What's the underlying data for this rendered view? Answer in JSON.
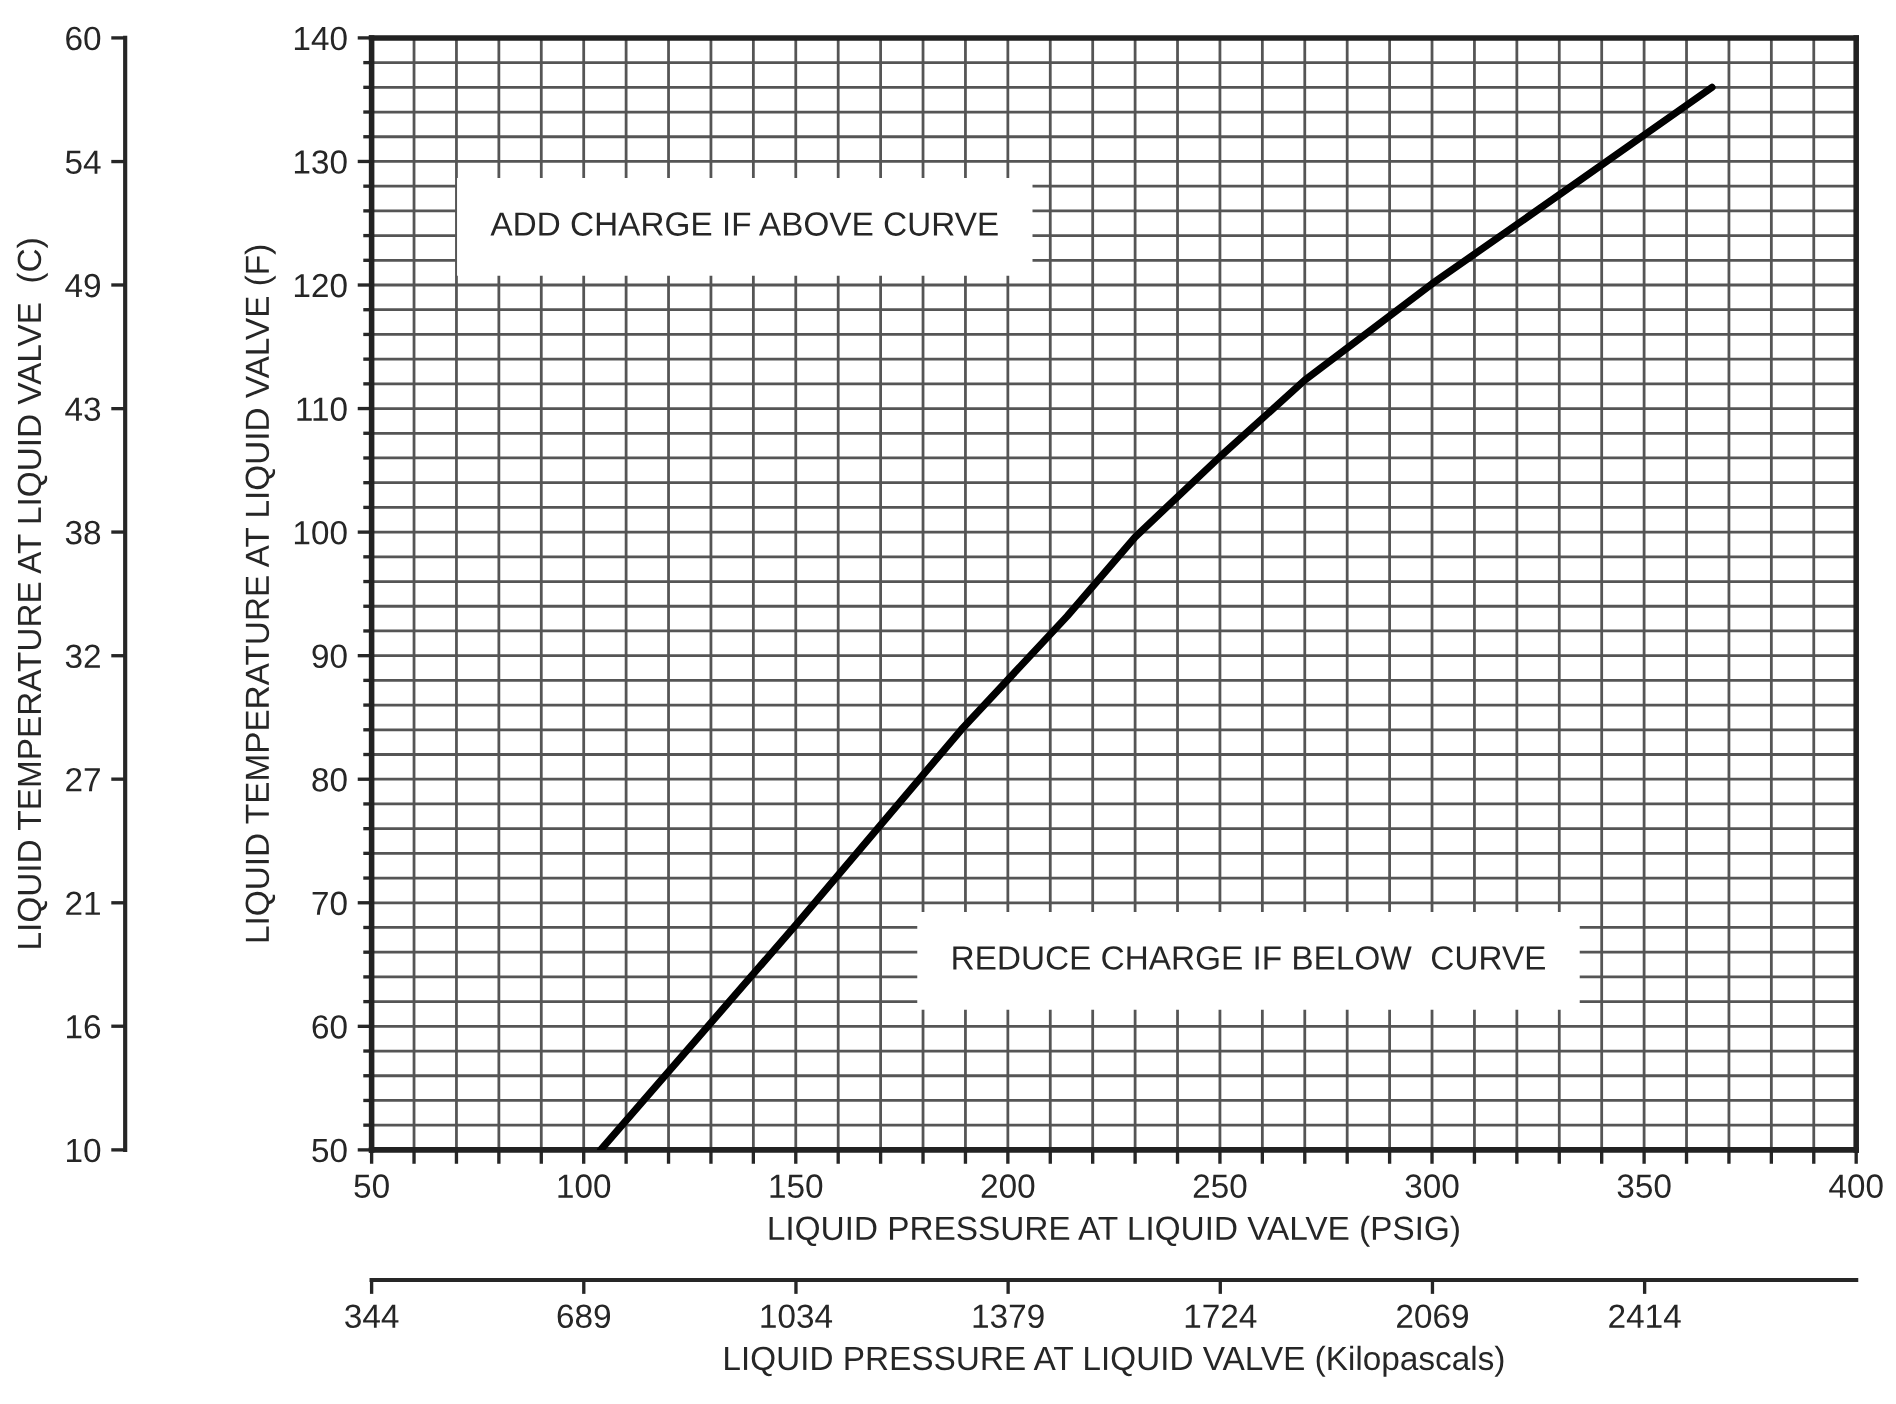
{
  "chart_data": {
    "type": "line",
    "xlabel": "LIQUID PRESSURE AT LIQUID VALVE (PSIG)",
    "ylabel": "LIQUID TEMPERATURE AT LIQUID VALVE (F)",
    "y3label": "LIQUID TEMPERATURE AT LIQUID VALVE  (C)",
    "x2label": "LIQUID PRESSURE AT LIQUID VALVE (Kilopascals)",
    "annotations": [
      "ADD CHARGE IF ABOVE CURVE",
      "REDUCE CHARGE IF BELOW  CURVE"
    ],
    "series": [
      {
        "color": "#000000",
        "x": [
          104,
          151,
          189,
          214,
          230,
          250,
          270,
          300,
          330,
          366
        ],
        "values": [
          50,
          68.6,
          84,
          93.2,
          99.6,
          106.1,
          112.3,
          120.1,
          127.3,
          136
        ]
      }
    ],
    "xlim": [
      50,
      400
    ],
    "xticks": [
      50,
      {
        "value": 60,
        "label": null
      },
      {
        "value": 70,
        "label": null
      },
      {
        "value": 80,
        "label": null
      },
      {
        "value": 90,
        "label": null
      },
      100,
      {
        "value": 110,
        "label": null
      },
      {
        "value": 120,
        "label": null
      },
      {
        "value": 130,
        "label": null
      },
      {
        "value": 140,
        "label": null
      },
      150,
      {
        "value": 160,
        "label": null
      },
      {
        "value": 170,
        "label": null
      },
      {
        "value": 180,
        "label": null
      },
      {
        "value": 190,
        "label": null
      },
      200,
      {
        "value": 210,
        "label": null
      },
      {
        "value": 220,
        "label": null
      },
      {
        "value": 230,
        "label": null
      },
      {
        "value": 240,
        "label": null
      },
      250,
      {
        "value": 260,
        "label": null
      },
      {
        "value": 270,
        "label": null
      },
      {
        "value": 280,
        "label": null
      },
      {
        "value": 290,
        "label": null
      },
      300,
      {
        "value": 310,
        "label": null
      },
      {
        "value": 320,
        "label": null
      },
      {
        "value": 330,
        "label": null
      },
      {
        "value": 340,
        "label": null
      },
      350,
      {
        "value": 360,
        "label": null
      },
      {
        "value": 370,
        "label": null
      },
      {
        "value": 380,
        "label": null
      },
      {
        "value": 390,
        "label": null
      },
      400
    ],
    "ylim": [
      50,
      140
    ],
    "yticks": [
      50,
      {
        "value": 52,
        "label": null
      },
      {
        "value": 54,
        "label": null
      },
      {
        "value": 56,
        "label": null
      },
      {
        "value": 58,
        "label": null
      },
      60,
      {
        "value": 62,
        "label": null
      },
      {
        "value": 64,
        "label": null
      },
      {
        "value": 66,
        "label": null
      },
      {
        "value": 68,
        "label": null
      },
      70,
      {
        "value": 72,
        "label": null
      },
      {
        "value": 74,
        "label": null
      },
      {
        "value": 76,
        "label": null
      },
      {
        "value": 78,
        "label": null
      },
      80,
      {
        "value": 82,
        "label": null
      },
      {
        "value": 84,
        "label": null
      },
      {
        "value": 86,
        "label": null
      },
      {
        "value": 88,
        "label": null
      },
      90,
      {
        "value": 92,
        "label": null
      },
      {
        "value": 94,
        "label": null
      },
      {
        "value": 96,
        "label": null
      },
      {
        "value": 98,
        "label": null
      },
      100,
      {
        "value": 102,
        "label": null
      },
      {
        "value": 104,
        "label": null
      },
      {
        "value": 106,
        "label": null
      },
      {
        "value": 108,
        "label": null
      },
      110,
      {
        "value": 112,
        "label": null
      },
      {
        "value": 114,
        "label": null
      },
      {
        "value": 116,
        "label": null
      },
      {
        "value": 118,
        "label": null
      },
      120,
      {
        "value": 122,
        "label": null
      },
      {
        "value": 124,
        "label": null
      },
      {
        "value": 126,
        "label": null
      },
      {
        "value": 128,
        "label": null
      },
      130,
      {
        "value": 132,
        "label": null
      },
      {
        "value": 134,
        "label": null
      },
      {
        "value": 136,
        "label": null
      },
      {
        "value": 138,
        "label": null
      },
      140
    ],
    "y3lim": [
      10,
      60
    ],
    "y3ticks": [
      10,
      {
        "value": 15.56,
        "label": "16"
      },
      {
        "value": 21.11,
        "label": "21"
      },
      {
        "value": 26.67,
        "label": "27"
      },
      {
        "value": 32.22,
        "label": "32"
      },
      {
        "value": 37.78,
        "label": "38"
      },
      {
        "value": 43.33,
        "label": "43"
      },
      {
        "value": 48.89,
        "label": "49"
      },
      {
        "value": 54.44,
        "label": "54"
      },
      60
    ],
    "x2lim": [
      344,
      2758
    ],
    "x2ticks": [
      344,
      689,
      1034,
      1379,
      1724,
      2069,
      2414
    ],
    "grid": true,
    "marker": "none",
    "line_style": "solid",
    "legend": false
  }
}
